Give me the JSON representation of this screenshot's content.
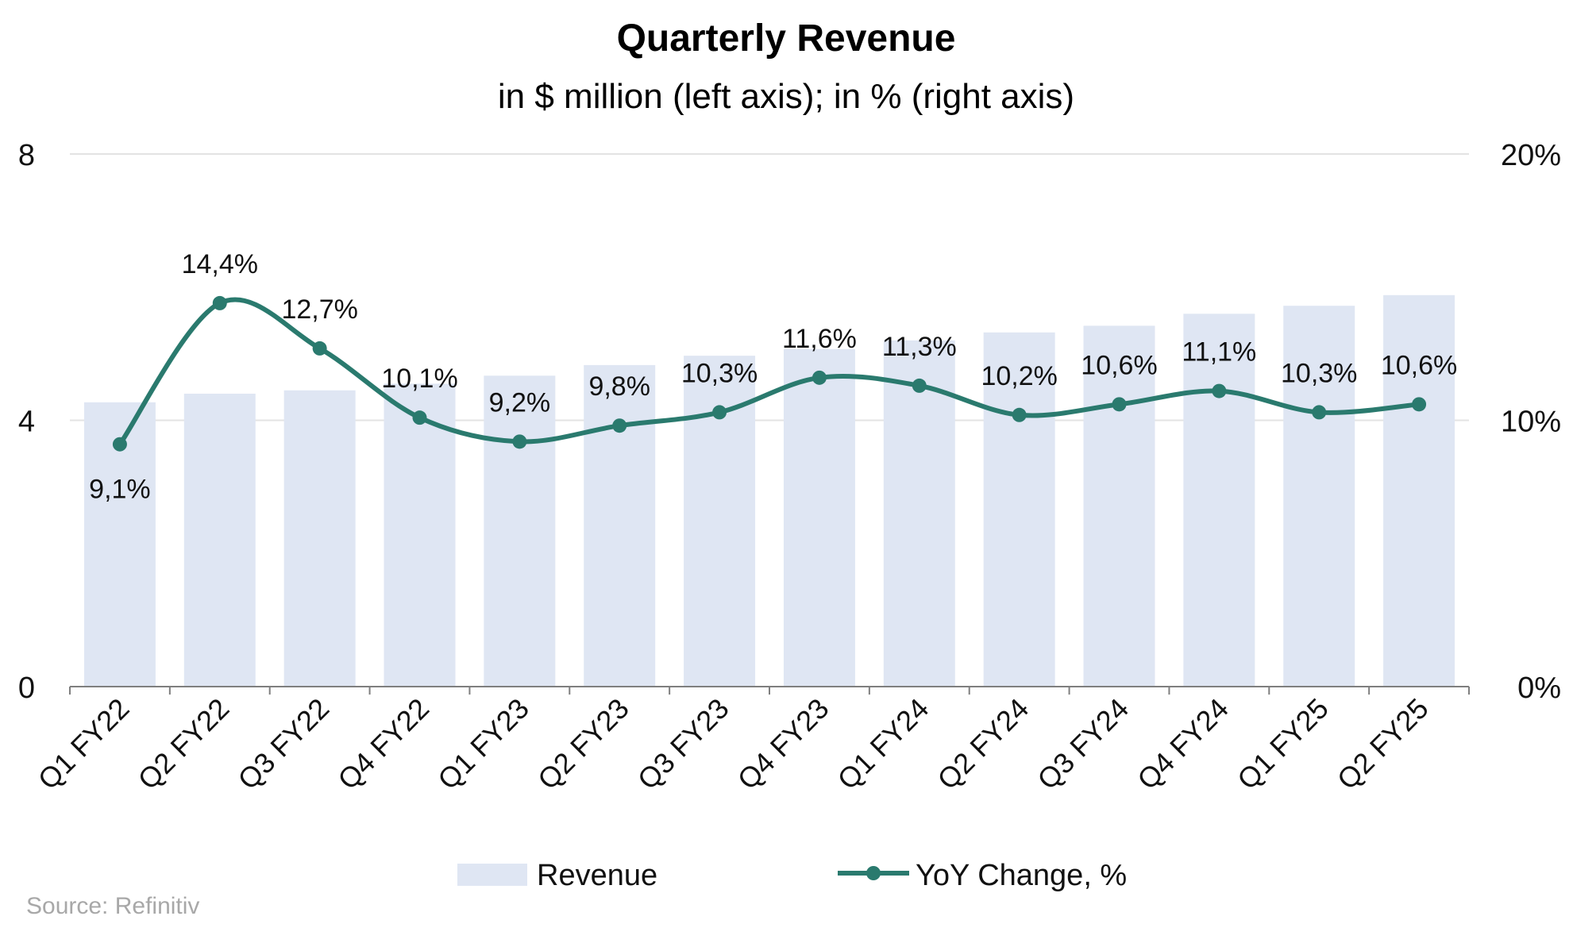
{
  "chart_data": {
    "type": "bar+line",
    "title": "Quarterly Revenue",
    "subtitle": "in $ million (left axis); in % (right axis)",
    "categories": [
      "Q1 FY22",
      "Q2 FY22",
      "Q3 FY22",
      "Q4 FY22",
      "Q1 FY23",
      "Q2 FY23",
      "Q3 FY23",
      "Q4 FY23",
      "Q1 FY24",
      "Q2 FY24",
      "Q3 FY24",
      "Q4 FY24",
      "Q1 FY25",
      "Q2 FY25"
    ],
    "series": [
      {
        "name": "Revenue",
        "type": "bar",
        "axis": "left",
        "color": "#dfe6f3",
        "values": [
          4.27,
          4.4,
          4.45,
          4.55,
          4.67,
          4.83,
          4.97,
          5.07,
          5.2,
          5.32,
          5.42,
          5.6,
          5.72,
          5.88
        ]
      },
      {
        "name": "YoY Change, %",
        "type": "line",
        "axis": "right",
        "color": "#2a7a6e",
        "values": [
          9.1,
          14.4,
          12.7,
          10.1,
          9.2,
          9.8,
          10.3,
          11.6,
          11.3,
          10.2,
          10.6,
          11.1,
          10.3,
          10.6
        ],
        "labels": [
          "9,1%",
          "14,4%",
          "12,7%",
          "10,1%",
          "9,2%",
          "9,8%",
          "10,3%",
          "11,6%",
          "11,3%",
          "10,2%",
          "10,6%",
          "11,1%",
          "10,3%",
          "10,6%"
        ]
      }
    ],
    "y_left": {
      "ylim": [
        0,
        8
      ],
      "ticks": [
        "0",
        "4",
        "8"
      ],
      "tick_values": [
        0,
        4,
        8
      ]
    },
    "y_right": {
      "ylim": [
        0,
        20
      ],
      "ticks": [
        "0%",
        "10%",
        "20%"
      ],
      "tick_values": [
        0,
        10,
        20
      ]
    },
    "grid": true,
    "legend": {
      "position": "bottom",
      "items": [
        "Revenue",
        "YoY Change, %"
      ]
    },
    "source": "Source: Refinitiv"
  }
}
